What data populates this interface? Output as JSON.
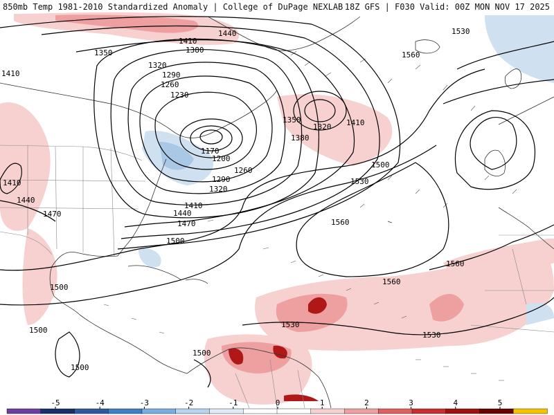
{
  "header": {
    "left": "850mb Temp 1981-2010 Standardized Anomaly | College of DuPage NEXLAB",
    "right": "18Z GFS | F030 Valid: 00Z MON NOV 17 2025"
  },
  "colors": {
    "contour": "#000000",
    "coast": "#333333",
    "border": "#888888",
    "warm_1": "#f7d0d0",
    "warm_2": "#eea0a0",
    "warm_3": "#e06060",
    "warm_4": "#b01818",
    "warm_5": "#7a0000",
    "cold_1": "#cfe0f0",
    "cold_2": "#a9c8e6"
  },
  "contour_labels": [
    {
      "id": "1440-a",
      "text": "1440"
    },
    {
      "id": "1410-a",
      "text": "1410"
    },
    {
      "id": "1380-a",
      "text": "1380"
    },
    {
      "id": "1350-a",
      "text": "1350"
    },
    {
      "id": "1320-a",
      "text": "1320"
    },
    {
      "id": "1290-a",
      "text": "1290"
    },
    {
      "id": "1260-a",
      "text": "1260"
    },
    {
      "id": "1230-a",
      "text": "1230"
    },
    {
      "id": "1170-a",
      "text": "1170"
    },
    {
      "id": "1200-a",
      "text": "1200"
    },
    {
      "id": "1260-b",
      "text": "1260"
    },
    {
      "id": "1290-b",
      "text": "1290"
    },
    {
      "id": "1320-b",
      "text": "1320"
    },
    {
      "id": "1410-b",
      "text": "1410"
    },
    {
      "id": "1440-b",
      "text": "1440"
    },
    {
      "id": "1470-a",
      "text": "1470"
    },
    {
      "id": "1350-b",
      "text": "1350"
    },
    {
      "id": "1320-c",
      "text": "1320"
    },
    {
      "id": "1380-b",
      "text": "1380"
    },
    {
      "id": "1410-c",
      "text": "1410"
    },
    {
      "id": "1500-a",
      "text": "1500"
    },
    {
      "id": "1530-a",
      "text": "1530"
    },
    {
      "id": "1560-a",
      "text": "1560"
    },
    {
      "id": "1530-b",
      "text": "1530"
    },
    {
      "id": "1560-b",
      "text": "1560"
    },
    {
      "id": "1560-c",
      "text": "1560"
    },
    {
      "id": "1560-d",
      "text": "1560"
    },
    {
      "id": "1530-c",
      "text": "1530"
    },
    {
      "id": "1530-d",
      "text": "1530"
    },
    {
      "id": "1500-b",
      "text": "1500"
    },
    {
      "id": "1500-c",
      "text": "1500"
    },
    {
      "id": "1500-d",
      "text": "1500"
    },
    {
      "id": "1500-e",
      "text": "1500"
    },
    {
      "id": "1500-f",
      "text": "1500"
    },
    {
      "id": "1410-d",
      "text": "1410"
    },
    {
      "id": "1440-c",
      "text": "1440"
    },
    {
      "id": "1470-b",
      "text": "1470"
    },
    {
      "id": "1410-e",
      "text": "1410"
    }
  ],
  "colorbar": {
    "ticks": [
      "-5",
      "-4",
      "-3",
      "-2",
      "-1",
      "0",
      "1",
      "2",
      "3",
      "4",
      "5"
    ],
    "colors": [
      "#6a3fa0",
      "#1a2f6a",
      "#2c5a9c",
      "#3d7fc4",
      "#7aaede",
      "#b8d3ee",
      "#dfeaf6",
      "#ffffff",
      "#ffffff",
      "#f7d0d0",
      "#eea0a0",
      "#e06060",
      "#c83030",
      "#a01010",
      "#6a0000",
      "#f6c300"
    ]
  }
}
